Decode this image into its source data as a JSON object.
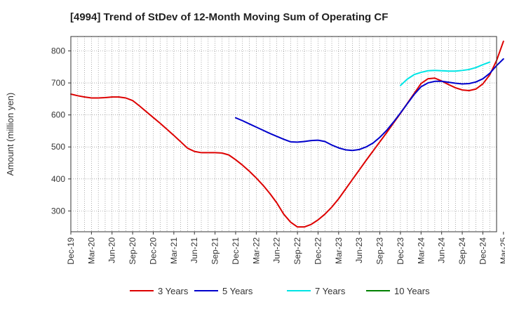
{
  "chart_data": {
    "type": "line",
    "title": "[4994]  Trend of StDev of 12-Month Moving Sum of Operating CF",
    "ylabel": "Amount (million yen)",
    "xlabel": "",
    "ylim": [
      235,
      845
    ],
    "yticks": [
      300,
      400,
      500,
      600,
      700,
      800
    ],
    "grid": true,
    "legend_position": "bottom",
    "x_tick_labels": [
      "Dec-19",
      "Mar-20",
      "Jun-20",
      "Sep-20",
      "Dec-20",
      "Mar-21",
      "Jun-21",
      "Sep-21",
      "Dec-21",
      "Mar-22",
      "Jun-22",
      "Sep-22",
      "Dec-22",
      "Mar-23",
      "Jun-23",
      "Sep-23",
      "Dec-23",
      "Mar-24",
      "Jun-24",
      "Sep-24",
      "Dec-24",
      "Mar-25"
    ],
    "x_start": "2019-12",
    "num_months": 63,
    "series": [
      {
        "name": "3 Years",
        "color": "#dd0000",
        "start_month_index": 0,
        "values": [
          665,
          660,
          656,
          653,
          653,
          654,
          656,
          656,
          653,
          645,
          628,
          610,
          592,
          574,
          555,
          536,
          516,
          496,
          486,
          482,
          482,
          482,
          481,
          475,
          460,
          443,
          424,
          403,
          380,
          354,
          325,
          290,
          265,
          250,
          250,
          258,
          272,
          290,
          312,
          338,
          368,
          398,
          428,
          458,
          487,
          516,
          545,
          575,
          605,
          636,
          667,
          698,
          713,
          715,
          706,
          695,
          685,
          678,
          676,
          681,
          697,
          725,
          770,
          830
        ]
      },
      {
        "name": "5 Years",
        "color": "#0000cc",
        "start_month_index": 24,
        "values": [
          591,
          582,
          572,
          562,
          552,
          542,
          533,
          524,
          516,
          515,
          517,
          520,
          521,
          517,
          506,
          497,
          491,
          489,
          492,
          500,
          512,
          530,
          552,
          578,
          606,
          635,
          664,
          688,
          700,
          705,
          705,
          702,
          699,
          697,
          698,
          703,
          713,
          730,
          754,
          775
        ]
      },
      {
        "name": "7 Years",
        "color": "#00e5e5",
        "start_month_index": 48,
        "values": [
          692,
          712,
          726,
          733,
          738,
          739,
          738,
          737,
          737,
          739,
          742,
          748,
          757,
          765
        ]
      },
      {
        "name": "10 Years",
        "color": "#008000",
        "start_month_index": 0,
        "values": []
      }
    ]
  }
}
